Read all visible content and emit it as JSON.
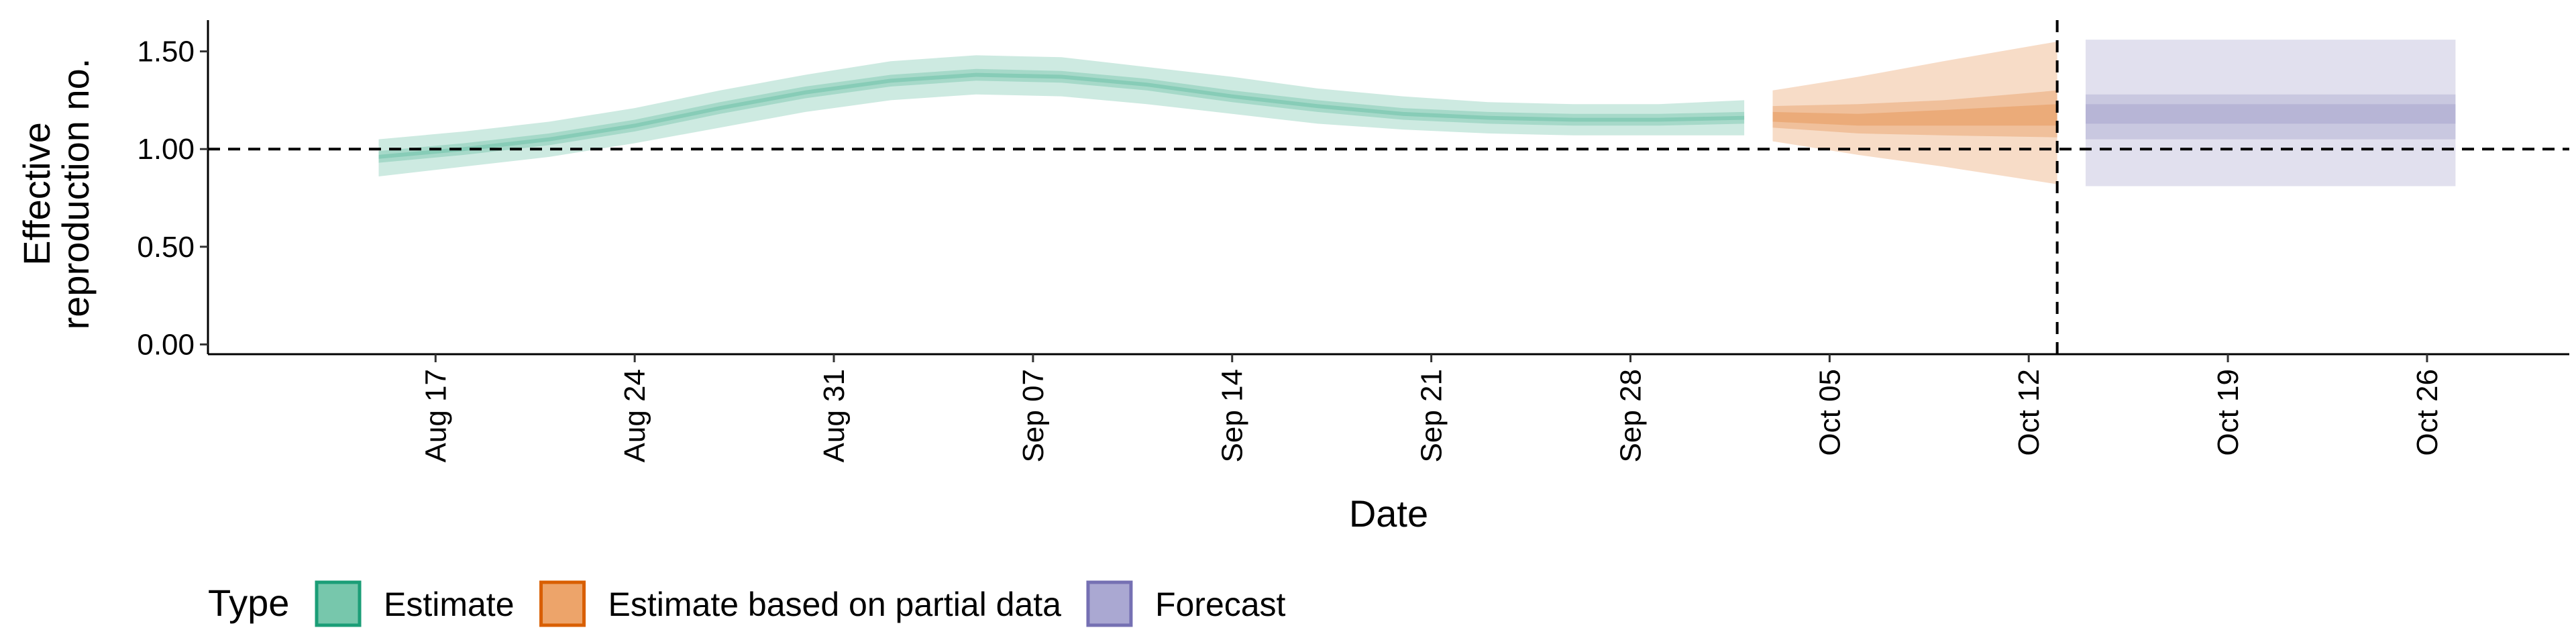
{
  "chart_data": {
    "type": "area",
    "xlabel": "Date",
    "ylabel_lines": [
      "Effective",
      "reproduction no."
    ],
    "xlim": [
      "2021-08-09",
      "2021-10-31"
    ],
    "ylim": [
      -0.05,
      1.66
    ],
    "x_ticks": [
      {
        "date": "2021-08-17",
        "label": "Aug 17"
      },
      {
        "date": "2021-08-24",
        "label": "Aug 24"
      },
      {
        "date": "2021-08-31",
        "label": "Aug 31"
      },
      {
        "date": "2021-09-07",
        "label": "Sep 07"
      },
      {
        "date": "2021-09-14",
        "label": "Sep 14"
      },
      {
        "date": "2021-09-21",
        "label": "Sep 21"
      },
      {
        "date": "2021-09-28",
        "label": "Sep 28"
      },
      {
        "date": "2021-10-05",
        "label": "Oct 05"
      },
      {
        "date": "2021-10-12",
        "label": "Oct 12"
      },
      {
        "date": "2021-10-19",
        "label": "Oct 19"
      },
      {
        "date": "2021-10-26",
        "label": "Oct 26"
      }
    ],
    "y_ticks": [
      {
        "value": 0.0,
        "label": "0.00"
      },
      {
        "value": 0.5,
        "label": "0.50"
      },
      {
        "value": 1.0,
        "label": "1.00"
      },
      {
        "value": 1.5,
        "label": "1.50"
      }
    ],
    "reference_lines": {
      "horizontal_y": 1.0,
      "vertical_x": "2021-10-13"
    },
    "grid": false,
    "legend": {
      "title": "Type",
      "position": "bottom-left",
      "items": [
        {
          "label": "Estimate",
          "fill": "#77c7ac",
          "stroke": "#1b9e77"
        },
        {
          "label": "Estimate based on partial data",
          "fill": "#eda46a",
          "stroke": "#d95f02"
        },
        {
          "label": "Forecast",
          "fill": "#aaa8d2",
          "stroke": "#7570b3"
        }
      ]
    },
    "series": [
      {
        "name": "Estimate",
        "color": "#1b9e77",
        "points": [
          {
            "date": "2021-08-15",
            "median": 0.96,
            "lo90": 0.86,
            "hi90": 1.05,
            "lo50": 0.93,
            "hi50": 0.99,
            "lo20": 0.95,
            "hi20": 0.97
          },
          {
            "date": "2021-08-18",
            "median": 1.0,
            "lo90": 0.91,
            "hi90": 1.09,
            "lo50": 0.97,
            "hi50": 1.03,
            "lo20": 0.99,
            "hi20": 1.01
          },
          {
            "date": "2021-08-21",
            "median": 1.05,
            "lo90": 0.96,
            "hi90": 1.14,
            "lo50": 1.02,
            "hi50": 1.08,
            "lo20": 1.04,
            "hi20": 1.06
          },
          {
            "date": "2021-08-24",
            "median": 1.12,
            "lo90": 1.03,
            "hi90": 1.21,
            "lo50": 1.09,
            "hi50": 1.15,
            "lo20": 1.11,
            "hi20": 1.13
          },
          {
            "date": "2021-08-27",
            "median": 1.21,
            "lo90": 1.11,
            "hi90": 1.3,
            "lo50": 1.18,
            "hi50": 1.24,
            "lo20": 1.2,
            "hi20": 1.22
          },
          {
            "date": "2021-08-30",
            "median": 1.29,
            "lo90": 1.19,
            "hi90": 1.38,
            "lo50": 1.26,
            "hi50": 1.32,
            "lo20": 1.28,
            "hi20": 1.3
          },
          {
            "date": "2021-09-02",
            "median": 1.35,
            "lo90": 1.25,
            "hi90": 1.45,
            "lo50": 1.32,
            "hi50": 1.38,
            "lo20": 1.34,
            "hi20": 1.36
          },
          {
            "date": "2021-09-05",
            "median": 1.38,
            "lo90": 1.28,
            "hi90": 1.48,
            "lo50": 1.35,
            "hi50": 1.41,
            "lo20": 1.37,
            "hi20": 1.39
          },
          {
            "date": "2021-09-08",
            "median": 1.37,
            "lo90": 1.27,
            "hi90": 1.47,
            "lo50": 1.34,
            "hi50": 1.4,
            "lo20": 1.36,
            "hi20": 1.38
          },
          {
            "date": "2021-09-11",
            "median": 1.33,
            "lo90": 1.23,
            "hi90": 1.42,
            "lo50": 1.3,
            "hi50": 1.36,
            "lo20": 1.32,
            "hi20": 1.34
          },
          {
            "date": "2021-09-14",
            "median": 1.27,
            "lo90": 1.18,
            "hi90": 1.37,
            "lo50": 1.24,
            "hi50": 1.3,
            "lo20": 1.26,
            "hi20": 1.28
          },
          {
            "date": "2021-09-17",
            "median": 1.22,
            "lo90": 1.13,
            "hi90": 1.31,
            "lo50": 1.19,
            "hi50": 1.25,
            "lo20": 1.21,
            "hi20": 1.23
          },
          {
            "date": "2021-09-20",
            "median": 1.18,
            "lo90": 1.1,
            "hi90": 1.27,
            "lo50": 1.15,
            "hi50": 1.21,
            "lo20": 1.17,
            "hi20": 1.19
          },
          {
            "date": "2021-09-23",
            "median": 1.16,
            "lo90": 1.08,
            "hi90": 1.24,
            "lo50": 1.13,
            "hi50": 1.19,
            "lo20": 1.15,
            "hi20": 1.17
          },
          {
            "date": "2021-09-26",
            "median": 1.15,
            "lo90": 1.07,
            "hi90": 1.23,
            "lo50": 1.12,
            "hi50": 1.18,
            "lo20": 1.14,
            "hi20": 1.16
          },
          {
            "date": "2021-09-29",
            "median": 1.15,
            "lo90": 1.07,
            "hi90": 1.23,
            "lo50": 1.12,
            "hi50": 1.18,
            "lo20": 1.14,
            "hi20": 1.16
          },
          {
            "date": "2021-10-02",
            "median": 1.16,
            "lo90": 1.07,
            "hi90": 1.25,
            "lo50": 1.13,
            "hi50": 1.19,
            "lo20": 1.15,
            "hi20": 1.17
          }
        ]
      },
      {
        "name": "Estimate based on partial data",
        "color": "#d95f02",
        "points": [
          {
            "date": "2021-10-03",
            "median": 1.16,
            "lo90": 1.04,
            "hi90": 1.3,
            "lo50": 1.11,
            "hi50": 1.22,
            "lo20": 1.14,
            "hi20": 1.19
          },
          {
            "date": "2021-10-06",
            "median": 1.15,
            "lo90": 0.97,
            "hi90": 1.37,
            "lo50": 1.08,
            "hi50": 1.23,
            "lo20": 1.12,
            "hi20": 1.18
          },
          {
            "date": "2021-10-09",
            "median": 1.16,
            "lo90": 0.91,
            "hi90": 1.45,
            "lo50": 1.07,
            "hi50": 1.25,
            "lo20": 1.12,
            "hi20": 1.2
          },
          {
            "date": "2021-10-13",
            "median": 1.18,
            "lo90": 0.82,
            "hi90": 1.55,
            "lo50": 1.06,
            "hi50": 1.3,
            "lo20": 1.12,
            "hi20": 1.23
          }
        ]
      },
      {
        "name": "Forecast",
        "color": "#7570b3",
        "points": [
          {
            "date": "2021-10-14",
            "median": 1.18,
            "lo90": 0.81,
            "hi90": 1.56,
            "lo50": 1.05,
            "hi50": 1.28,
            "lo20": 1.13,
            "hi20": 1.23
          },
          {
            "date": "2021-10-27",
            "median": 1.18,
            "lo90": 0.81,
            "hi90": 1.56,
            "lo50": 1.05,
            "hi50": 1.28,
            "lo20": 1.13,
            "hi20": 1.23
          }
        ]
      }
    ]
  }
}
